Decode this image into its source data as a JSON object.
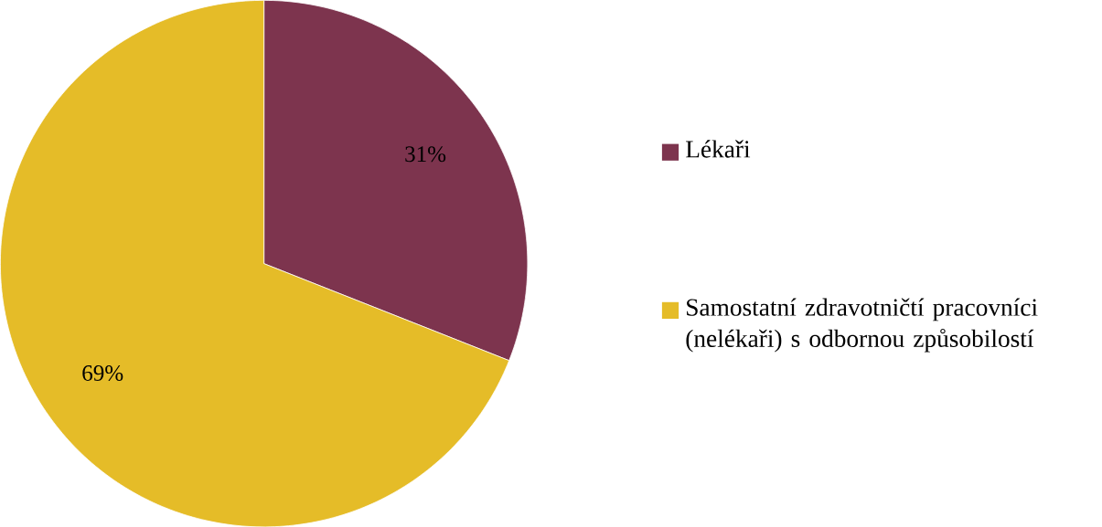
{
  "chart_data": {
    "type": "pie",
    "categories": [
      "Lékaři",
      "Samostatní zdravotničtí pracovníci (nelékaři) s odbornou způsobilostí"
    ],
    "values": [
      31,
      69
    ],
    "colors": [
      "#7d344e",
      "#e5bc28"
    ],
    "value_labels": [
      "31%",
      "69%"
    ],
    "legend": "right"
  }
}
